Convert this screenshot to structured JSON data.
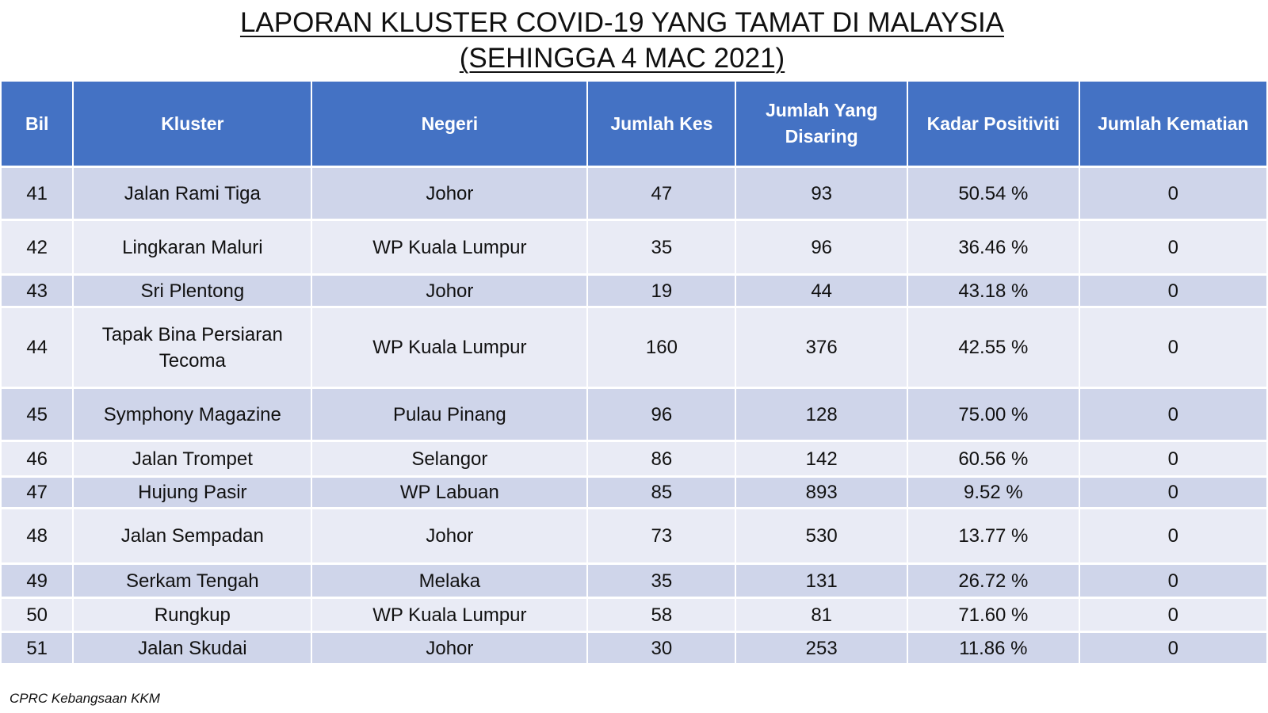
{
  "title": {
    "line1": "LAPORAN KLUSTER COVID-19 YANG TAMAT DI MALAYSIA",
    "line2": "(SEHINGGA  4 MAC 2021)"
  },
  "table": {
    "headers": [
      "Bil",
      "Kluster",
      "Negeri",
      "Jumlah Kes",
      "Jumlah Yang Disaring",
      "Kadar Positiviti",
      "Jumlah Kematian"
    ],
    "rows": [
      [
        "41",
        "Jalan Rami Tiga",
        "Johor",
        "47",
        "93",
        "50.54 %",
        "0"
      ],
      [
        "42",
        "Lingkaran Maluri",
        "WP Kuala Lumpur",
        "35",
        "96",
        "36.46 %",
        "0"
      ],
      [
        "43",
        "Sri Plentong",
        "Johor",
        "19",
        "44",
        "43.18 %",
        "0"
      ],
      [
        "44",
        "Tapak Bina Persiaran Tecoma",
        "WP Kuala Lumpur",
        "160",
        "376",
        "42.55 %",
        "0"
      ],
      [
        "45",
        "Symphony Magazine",
        "Pulau Pinang",
        "96",
        "128",
        "75.00 %",
        "0"
      ],
      [
        "46",
        "Jalan Trompet",
        "Selangor",
        "86",
        "142",
        "60.56 %",
        "0"
      ],
      [
        "47",
        "Hujung Pasir",
        "WP Labuan",
        "85",
        "893",
        "9.52 %",
        "0"
      ],
      [
        "48",
        "Jalan Sempadan",
        "Johor",
        "73",
        "530",
        "13.77 %",
        "0"
      ],
      [
        "49",
        "Serkam Tengah",
        "Melaka",
        "35",
        "131",
        "26.72 %",
        "0"
      ],
      [
        "50",
        "Rungkup",
        "WP Kuala Lumpur",
        "58",
        "81",
        "71.60 %",
        "0"
      ],
      [
        "51",
        "Jalan Skudai",
        "Johor",
        "30",
        "253",
        "11.86 %",
        "0"
      ]
    ]
  },
  "footer": "CPRC Kebangsaan KKM",
  "colors": {
    "header_bg": "#4472c4",
    "row_odd": "#cfd5ea",
    "row_even": "#e9ebf5"
  }
}
